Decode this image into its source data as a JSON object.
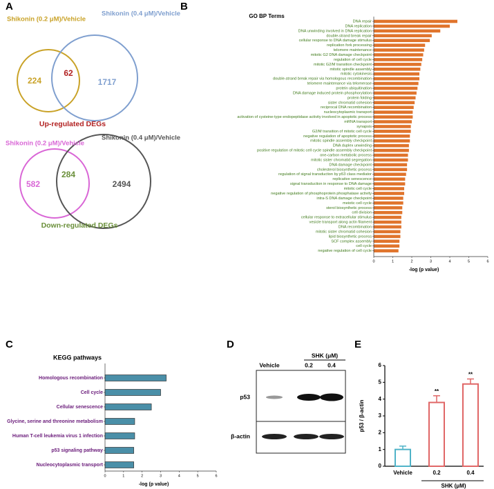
{
  "panels": [
    "A",
    "B",
    "C",
    "D",
    "E"
  ],
  "chart_data": [
    {
      "type": "venn",
      "title": "Up-regulated DEGs",
      "title_color": "#b22222",
      "sets": [
        {
          "name": "Shikonin (0.2 μM)/Vehicle",
          "color": "#c9a227"
        },
        {
          "name": "Shikonin (0.4 μM)/Vehicle",
          "color": "#7f9fcf"
        }
      ],
      "values": [
        224,
        62,
        1717
      ]
    },
    {
      "type": "venn",
      "title": "Down-regulated DEGs",
      "title_color": "#6a8f3a",
      "sets": [
        {
          "name": "Shikonin (0.2 μM)/Vehicle",
          "color": "#d966d6"
        },
        {
          "name": "Shikonin (0.4 μM)/Vehicle",
          "color": "#555555"
        }
      ],
      "values": [
        582,
        284,
        2494
      ]
    },
    {
      "type": "hbar",
      "title": "GO BP Terms",
      "xlabel": "-log (p value)",
      "color": "#e0742c",
      "label_color": "#3f7a1a",
      "xlim": [
        0,
        6
      ],
      "xticks": [
        0,
        1,
        2,
        3,
        4,
        5,
        6
      ],
      "categories": [
        "DNA repair",
        "DNA replication",
        "DNA unwinding involved in DNA replication",
        "double-strand break repair",
        "cellular response to DNA damage stimulus",
        "replication fork processing",
        "telomere maintenance",
        "mitotic G2 DNA damage checkpoint",
        "regulation of cell cycle",
        "mitotic G2/M transition checkpoint",
        "mitotic spindle assembly",
        "mitotic cytokinesis",
        "double-strand break repair via homologous recombination",
        "telomere maintenance via telomerase",
        "protein ubiquitination",
        "DNA damage induced protein phosphorylation",
        "protein folding",
        "sister chromatid cohesion",
        "reciprocal DNA recombination",
        "nucleocytoplasmic transport",
        "activation of cysteine-type endopeptidase activity involved in apoptotic process",
        "mRNA transport",
        "synapsis",
        "G2/M transition of mitotic cell cycle",
        "negative regulation of apoptotic process",
        "mitotic spindle assembly checkpoint",
        "DNA duplex unwinding",
        "positive regulation of mitotic cell cycle spindle assembly checkpoint",
        "one-carbon metabolic process",
        "mitotic sister chromatid segregation",
        "DNA damage checkpoint",
        "cholesterol biosynthetic process",
        "regulation of signal transduction by p53 class mediator",
        "replicative senescence",
        "signal transduction in response to DNA damage",
        "mitotic cell cycle",
        "negative regulation of phosphoprotein phosphatase activity",
        "intra-S DNA damage checkpoint",
        "meiotic cell cycle",
        "sterol biosynthetic process",
        "cell division",
        "cellular response to extracellular stimulus",
        "vesicle transport along actin filament",
        "DNA recombination",
        "mitotic sister chromatid cohesion",
        "lipid biosynthetic process",
        "SCF complex assembly",
        "cell cycle",
        "negative regulation of cell cycle"
      ],
      "values": [
        4.4,
        4.0,
        3.5,
        3.05,
        2.95,
        2.7,
        2.65,
        2.6,
        2.55,
        2.5,
        2.45,
        2.4,
        2.4,
        2.35,
        2.3,
        2.25,
        2.2,
        2.15,
        2.1,
        2.05,
        2.05,
        2.0,
        1.95,
        1.95,
        1.9,
        1.9,
        1.85,
        1.85,
        1.8,
        1.8,
        1.75,
        1.75,
        1.7,
        1.65,
        1.65,
        1.6,
        1.6,
        1.55,
        1.55,
        1.5,
        1.5,
        1.45,
        1.45,
        1.45,
        1.4,
        1.4,
        1.35,
        1.35,
        1.3
      ]
    },
    {
      "type": "hbar",
      "title": "KEGG pathways",
      "xlabel": "-log (p value)",
      "color": "#4a8fa8",
      "label_color": "#6a1b7a",
      "xlim": [
        0,
        6
      ],
      "xticks": [
        0,
        1,
        2,
        3,
        4,
        5,
        6
      ],
      "categories": [
        "Homologous recombination",
        "Cell cycle",
        "Cellular senescence",
        "Glycine, serine and threonine metabolism",
        "Human T-cell leukemia virus 1 infection",
        "p53 signaling pathway",
        "Nucleocytoplasmic transport"
      ],
      "values": [
        3.3,
        3.0,
        2.5,
        1.6,
        1.6,
        1.55,
        1.55
      ]
    },
    {
      "type": "bar",
      "ylabel": "p53 / β-actin",
      "xlabel": "SHK (μM)",
      "categories": [
        "Vehicle",
        "0.2",
        "0.4"
      ],
      "values": [
        1.0,
        3.8,
        4.9
      ],
      "errors": [
        0.2,
        0.4,
        0.3
      ],
      "colors": [
        "#4fb3c8",
        "#e06666",
        "#e06666"
      ],
      "annotations": [
        null,
        "**",
        "**"
      ],
      "ylim": [
        0,
        6
      ],
      "yticks": [
        0,
        1,
        2,
        3,
        4,
        5,
        6
      ]
    }
  ],
  "blot": {
    "header": "SHK (μM)",
    "lanes": [
      "Vehicle",
      "0.2",
      "0.4"
    ],
    "rows": [
      "p53",
      "β-actin"
    ]
  }
}
